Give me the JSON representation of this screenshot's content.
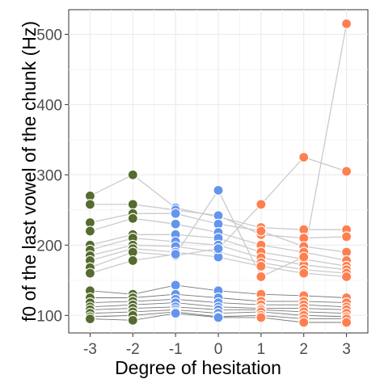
{
  "chart_data": {
    "type": "scatter",
    "xlabel": "Degree of hesitation",
    "ylabel": "f0 of the last vowel of the chunk (Hz)",
    "x_ticks": [
      "-3",
      "-2",
      "-1",
      "0",
      "1",
      "2",
      "3"
    ],
    "y_ticks": [
      "100",
      "200",
      "300",
      "400",
      "500"
    ],
    "xlim": [
      -3.5,
      3.5
    ],
    "ylim": [
      75,
      535
    ],
    "grid": true,
    "colors": {
      "negative": "#556B2F",
      "zero_to_minus1": "#6495ED",
      "positive": "#FF7F50",
      "line_dark": "#555555",
      "line_light": "#c8c8c8"
    },
    "series": [
      {
        "values": [
          [
            -3,
            270
          ],
          [
            -2,
            300
          ],
          [
            -1,
            253
          ],
          [
            0,
            240
          ],
          [
            1,
            225
          ],
          [
            2,
            222
          ],
          [
            3,
            222
          ]
        ]
      },
      {
        "values": [
          [
            -3,
            258
          ],
          [
            -2,
            258
          ],
          [
            -1,
            250
          ],
          [
            0,
            242
          ],
          [
            1,
            215
          ],
          [
            2,
            210
          ],
          [
            3,
            212
          ]
        ]
      },
      {
        "values": [
          [
            -3,
            232
          ],
          [
            -2,
            245
          ],
          [
            -1,
            245
          ],
          [
            0,
            230
          ],
          [
            1,
            220
          ],
          [
            2,
            198
          ],
          [
            3,
            190
          ]
        ]
      },
      {
        "values": [
          [
            -3,
            220
          ],
          [
            -2,
            238
          ],
          [
            -1,
            230
          ],
          [
            0,
            218
          ],
          [
            1,
            200
          ],
          [
            2,
            190
          ],
          [
            3,
            178
          ]
        ]
      },
      {
        "values": [
          [
            -3,
            200
          ],
          [
            -2,
            215
          ],
          [
            -1,
            215
          ],
          [
            0,
            210
          ],
          [
            1,
            190
          ],
          [
            2,
            180
          ],
          [
            3,
            170
          ]
        ]
      },
      {
        "values": [
          [
            -3,
            193
          ],
          [
            -2,
            210
          ],
          [
            -1,
            205
          ],
          [
            0,
            200
          ],
          [
            1,
            182
          ],
          [
            2,
            172
          ],
          [
            3,
            165
          ]
        ]
      },
      {
        "values": [
          [
            -3,
            185
          ],
          [
            -2,
            200
          ],
          [
            -1,
            198
          ],
          [
            0,
            190
          ],
          [
            1,
            175
          ],
          [
            2,
            165
          ],
          [
            3,
            160
          ]
        ]
      },
      {
        "values": [
          [
            -3,
            178
          ],
          [
            -2,
            195
          ],
          [
            -1,
            190
          ],
          [
            0,
            183
          ],
          [
            1,
            170
          ],
          [
            2,
            160
          ],
          [
            3,
            155
          ]
        ]
      },
      {
        "values": [
          [
            -3,
            168
          ],
          [
            -2,
            190
          ],
          [
            -1,
            185
          ],
          [
            0,
            195
          ],
          [
            1,
            258
          ],
          [
            2,
            325
          ],
          [
            3,
            305
          ]
        ]
      },
      {
        "values": [
          [
            -3,
            160
          ],
          [
            -2,
            178
          ],
          [
            -1,
            187
          ],
          [
            0,
            278
          ],
          [
            1,
            155
          ],
          [
            2,
            183
          ],
          [
            3,
            515
          ]
        ]
      },
      {
        "values": [
          [
            -3,
            135
          ],
          [
            -2,
            130
          ],
          [
            -1,
            143
          ],
          [
            0,
            135
          ],
          [
            1,
            130
          ],
          [
            2,
            128
          ],
          [
            3,
            125
          ]
        ]
      },
      {
        "values": [
          [
            -3,
            125
          ],
          [
            -2,
            125
          ],
          [
            -1,
            130
          ],
          [
            0,
            125
          ],
          [
            1,
            120
          ],
          [
            2,
            120
          ],
          [
            3,
            118
          ]
        ]
      },
      {
        "values": [
          [
            -3,
            118
          ],
          [
            -2,
            120
          ],
          [
            -1,
            123
          ],
          [
            0,
            118
          ],
          [
            1,
            115
          ],
          [
            2,
            115
          ],
          [
            3,
            112
          ]
        ]
      },
      {
        "values": [
          [
            -3,
            112
          ],
          [
            -2,
            115
          ],
          [
            -1,
            118
          ],
          [
            0,
            112
          ],
          [
            1,
            110
          ],
          [
            2,
            110
          ],
          [
            3,
            108
          ]
        ]
      },
      {
        "values": [
          [
            -3,
            108
          ],
          [
            -2,
            110
          ],
          [
            -1,
            112
          ],
          [
            0,
            108
          ],
          [
            1,
            108
          ],
          [
            2,
            105
          ],
          [
            3,
            103
          ]
        ]
      },
      {
        "values": [
          [
            -3,
            103
          ],
          [
            -2,
            105
          ],
          [
            -1,
            108
          ],
          [
            0,
            103
          ],
          [
            1,
            105
          ],
          [
            2,
            100
          ],
          [
            3,
            98
          ]
        ]
      },
      {
        "values": [
          [
            -3,
            98
          ],
          [
            -2,
            100
          ],
          [
            -1,
            105
          ],
          [
            0,
            98
          ],
          [
            1,
            100
          ],
          [
            2,
            95
          ],
          [
            3,
            95
          ]
        ]
      },
      {
        "values": [
          [
            -3,
            95
          ],
          [
            -2,
            93
          ],
          [
            -1,
            103
          ],
          [
            0,
            97
          ],
          [
            1,
            97
          ],
          [
            2,
            90
          ],
          [
            3,
            90
          ]
        ]
      }
    ]
  }
}
